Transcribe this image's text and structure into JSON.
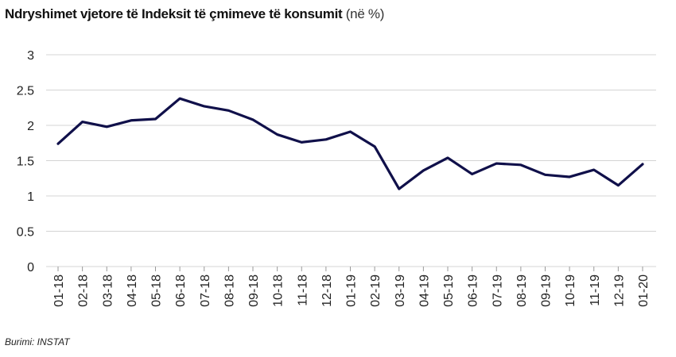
{
  "chart_data": {
    "type": "line",
    "title": "Ndryshimet vjetore të Indeksit të çmimeve të konsumit",
    "subtitle": "(në %)",
    "source": "Burimi: INSTAT",
    "categories": [
      "01-18",
      "02-18",
      "03-18",
      "04-18",
      "05-18",
      "06-18",
      "07-18",
      "08-18",
      "09-18",
      "10-18",
      "11-18",
      "12-18",
      "01-19",
      "02-19",
      "03-19",
      "04-19",
      "05-19",
      "06-19",
      "07-19",
      "08-19",
      "09-19",
      "10-19",
      "11-19",
      "12-19",
      "01-20"
    ],
    "values": [
      1.74,
      2.05,
      1.98,
      2.07,
      2.09,
      2.38,
      2.27,
      2.21,
      2.08,
      1.87,
      1.76,
      1.8,
      1.91,
      1.7,
      1.1,
      1.36,
      1.54,
      1.31,
      1.46,
      1.44,
      1.3,
      1.27,
      1.37,
      1.15,
      1.45
    ],
    "color": "#10104a",
    "ylim": [
      0,
      3
    ],
    "yticks": [
      0,
      0.5,
      1,
      1.5,
      2,
      2.5,
      3
    ],
    "grid": true
  }
}
